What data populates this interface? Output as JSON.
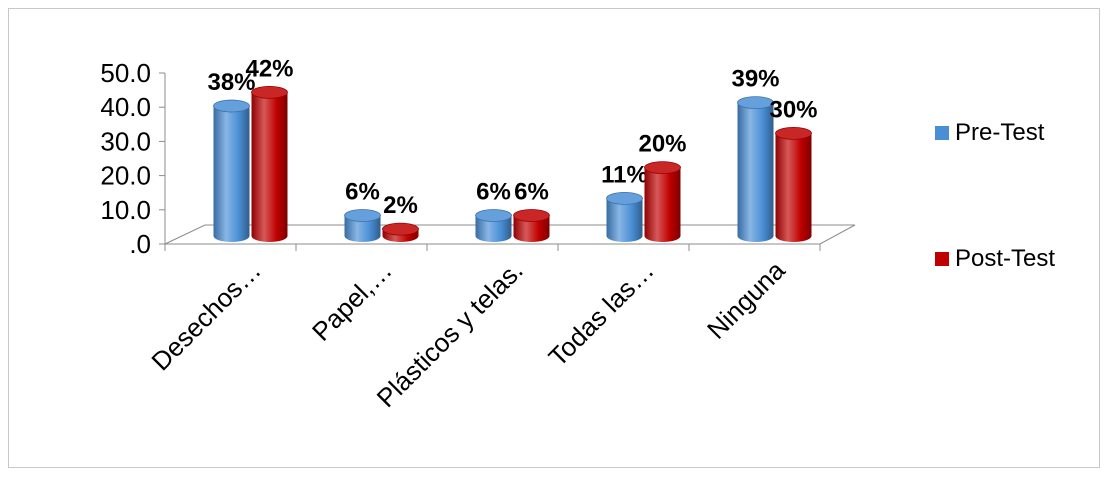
{
  "chart_data": {
    "type": "bar",
    "categories": [
      "Desechos…",
      "Papel,…",
      "Plásticos y telas.",
      "Todas las…",
      "Ninguna"
    ],
    "series": [
      {
        "name": "Pre-Test",
        "values": [
          38,
          6,
          6,
          11,
          39
        ],
        "labels": [
          "38%",
          "6%",
          "6%",
          "11%",
          "39%"
        ],
        "color": "#4a8fd6"
      },
      {
        "name": "Post-Test",
        "values": [
          42,
          2,
          6,
          20,
          30
        ],
        "labels": [
          "42%",
          "2%",
          "6%",
          "20%",
          "30%"
        ],
        "color": "#c00000"
      }
    ],
    "yticks": [
      "50.0",
      "40.0",
      "30.0",
      "20.0",
      "10.0",
      ".0"
    ],
    "ylim": [
      0,
      50
    ],
    "legend_position": "right",
    "grid": false,
    "style": "3d-cylinder"
  }
}
